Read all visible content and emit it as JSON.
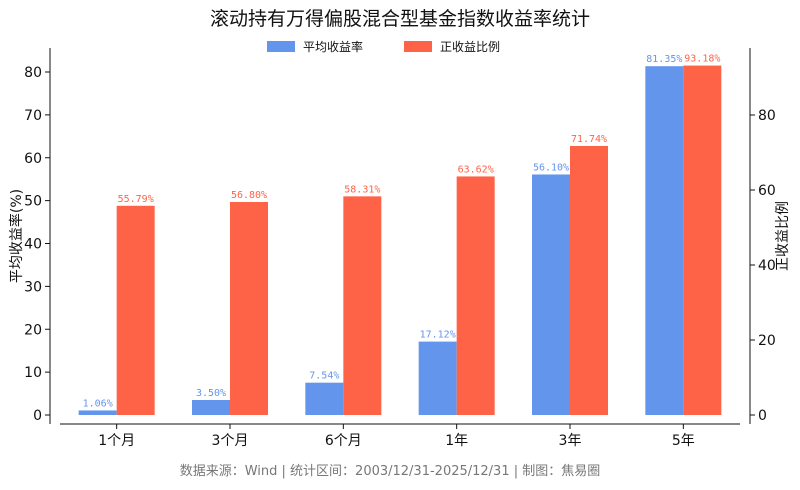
{
  "chart_data": {
    "type": "bar",
    "title": "滚动持有万得偏股混合型基金指数收益率统计",
    "categories": [
      "1个月",
      "3个月",
      "6个月",
      "1年",
      "3年",
      "5年"
    ],
    "series": [
      {
        "name": "平均收益率",
        "axis": "left",
        "color": "#6495ED",
        "values": [
          1.06,
          3.5,
          7.54,
          17.12,
          56.1,
          81.35
        ],
        "labels": [
          "1.06%",
          "3.50%",
          "7.54%",
          "17.12%",
          "56.10%",
          "81.35%"
        ]
      },
      {
        "name": "正收益比例",
        "axis": "right",
        "color": "#FF6347",
        "values": [
          55.79,
          56.8,
          58.31,
          63.62,
          71.74,
          93.18
        ],
        "labels": [
          "55.79%",
          "56.80%",
          "58.31%",
          "63.62%",
          "71.74%",
          "93.18%"
        ]
      }
    ],
    "ylabel_left": "平均收益率(%)",
    "ylabel_right": "正收益比例",
    "ylim_left": [
      0,
      86
    ],
    "ylim_right": [
      0,
      98.3
    ],
    "yticks_left": [
      0,
      10,
      20,
      30,
      40,
      50,
      60,
      70,
      80
    ],
    "yticks_right": [
      0,
      20,
      40,
      60,
      80
    ],
    "legend_position": "top-center",
    "grid": false
  },
  "source_text": "数据来源：Wind | 统计区间：2003/12/31-2025/12/31 | 制图：焦易圈"
}
